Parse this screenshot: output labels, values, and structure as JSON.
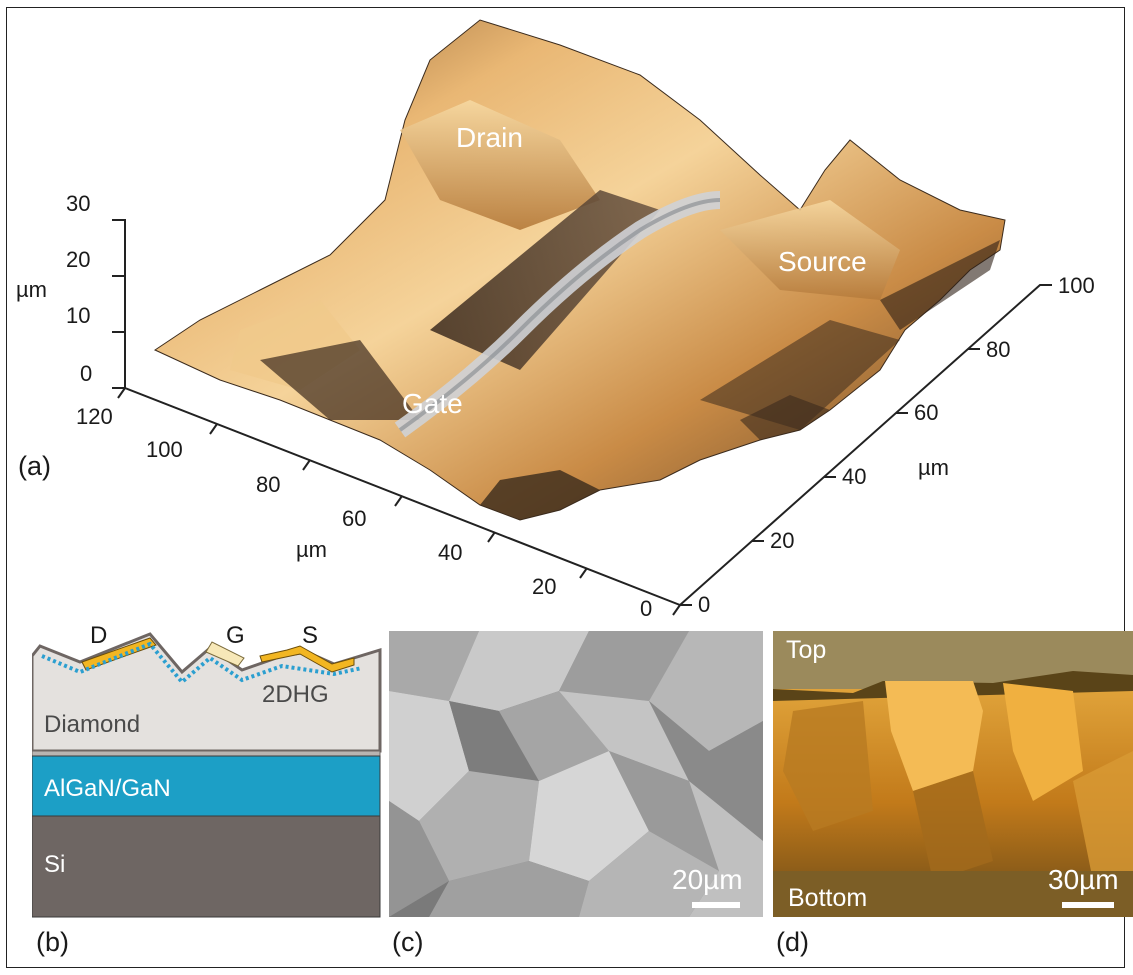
{
  "panel_a": {
    "letter": "(a)",
    "labels": {
      "drain": "Drain",
      "source": "Source",
      "gate": "Gate"
    },
    "z_axis": {
      "unit": "µm",
      "ticks": [
        "30",
        "20",
        "10",
        "0"
      ]
    },
    "left_axis": {
      "unit": "µm",
      "ticks": [
        "120",
        "100",
        "80",
        "60",
        "40",
        "20",
        "0"
      ]
    },
    "right_axis": {
      "unit": "µm",
      "ticks": [
        "0",
        "20",
        "40",
        "60",
        "80",
        "100"
      ]
    }
  },
  "panel_b": {
    "letter": "(b)",
    "contacts": {
      "d": "D",
      "g": "G",
      "s": "S"
    },
    "channel": "2DHG",
    "layers": {
      "diamond": "Diamond",
      "algan": "AlGaN/GaN",
      "si": "Si"
    },
    "colors": {
      "diamond": "#e4e1de",
      "algan": "#1c9fc6",
      "si": "#6e6663",
      "contact": "#f2b622",
      "dots": "#2b9fd0"
    }
  },
  "panel_c": {
    "letter": "(c)",
    "scale": "20µm"
  },
  "panel_d": {
    "letter": "(d)",
    "scale": "30µm",
    "top": "Top",
    "bottom": "Bottom"
  }
}
